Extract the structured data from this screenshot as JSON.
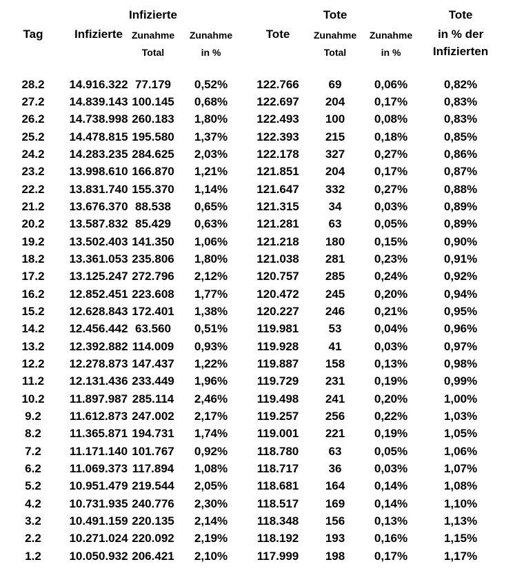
{
  "page": {
    "kind": "daily-covid-statistics-table",
    "background_color": "#ffffff",
    "text_color": "#000000"
  },
  "table": {
    "columns": [
      {
        "name": "tag",
        "header": [
          "",
          "Tag",
          ""
        ]
      },
      {
        "name": "infizierte",
        "header": [
          "",
          "Infizierte",
          ""
        ]
      },
      {
        "name": "infizierte-zunahme-total",
        "header": [
          "Infizierte",
          "Zunahme",
          "Total"
        ]
      },
      {
        "name": "infizierte-zunahme-prozent",
        "header": [
          "",
          "Zunahme",
          "in %"
        ]
      },
      {
        "name": "tote",
        "header": [
          "",
          "Tote",
          ""
        ]
      },
      {
        "name": "tote-zunahme-total",
        "header": [
          "Tote",
          "Zunahme",
          "Total"
        ]
      },
      {
        "name": "tote-zunahme-prozent",
        "header": [
          "",
          "Zunahme",
          "in %"
        ]
      },
      {
        "name": "tote-in-prozent-der-infizierten",
        "header": [
          "Tote",
          "in % der",
          "Infizierten"
        ]
      }
    ],
    "rows": [
      [
        "28.2",
        "14.916.322",
        "77.179",
        "0,52%",
        "122.766",
        "69",
        "0,06%",
        "0,82%"
      ],
      [
        "27.2",
        "14.839.143",
        "100.145",
        "0,68%",
        "122.697",
        "204",
        "0,17%",
        "0,83%"
      ],
      [
        "26.2",
        "14.738.998",
        "260.183",
        "1,80%",
        "122.493",
        "100",
        "0,08%",
        "0,83%"
      ],
      [
        "25.2",
        "14.478.815",
        "195.580",
        "1,37%",
        "122.393",
        "215",
        "0,18%",
        "0,85%"
      ],
      [
        "24.2",
        "14.283.235",
        "284.625",
        "2,03%",
        "122.178",
        "327",
        "0,27%",
        "0,86%"
      ],
      [
        "23.2",
        "13.998.610",
        "166.870",
        "1,21%",
        "121.851",
        "204",
        "0,17%",
        "0,87%"
      ],
      [
        "22.2",
        "13.831.740",
        "155.370",
        "1,14%",
        "121.647",
        "332",
        "0,27%",
        "0,88%"
      ],
      [
        "21.2",
        "13.676.370",
        "88.538",
        "0,65%",
        "121.315",
        "34",
        "0,03%",
        "0,89%"
      ],
      [
        "20.2",
        "13.587.832",
        "85.429",
        "0,63%",
        "121.281",
        "63",
        "0,05%",
        "0,89%"
      ],
      [
        "19.2",
        "13.502.403",
        "141.350",
        "1,06%",
        "121.218",
        "180",
        "0,15%",
        "0,90%"
      ],
      [
        "18.2",
        "13.361.053",
        "235.806",
        "1,80%",
        "121.038",
        "281",
        "0,23%",
        "0,91%"
      ],
      [
        "17.2",
        "13.125.247",
        "272.796",
        "2,12%",
        "120.757",
        "285",
        "0,24%",
        "0,92%"
      ],
      [
        "16.2",
        "12.852.451",
        "223.608",
        "1,77%",
        "120.472",
        "245",
        "0,20%",
        "0,94%"
      ],
      [
        "15.2",
        "12.628.843",
        "172.401",
        "1,38%",
        "120.227",
        "246",
        "0,21%",
        "0,95%"
      ],
      [
        "14.2",
        "12.456.442",
        "63.560",
        "0,51%",
        "119.981",
        "53",
        "0,04%",
        "0,96%"
      ],
      [
        "13.2",
        "12.392.882",
        "114.009",
        "0,93%",
        "119.928",
        "41",
        "0,03%",
        "0,97%"
      ],
      [
        "12.2",
        "12.278.873",
        "147.437",
        "1,22%",
        "119.887",
        "158",
        "0,13%",
        "0,98%"
      ],
      [
        "11.2",
        "12.131.436",
        "233.449",
        "1,96%",
        "119.729",
        "231",
        "0,19%",
        "0,99%"
      ],
      [
        "10.2",
        "11.897.987",
        "285.114",
        "2,46%",
        "119.498",
        "241",
        "0,20%",
        "1,00%"
      ],
      [
        "9.2",
        "11.612.873",
        "247.002",
        "2,17%",
        "119.257",
        "256",
        "0,22%",
        "1,03%"
      ],
      [
        "8.2",
        "11.365.871",
        "194.731",
        "1,74%",
        "119.001",
        "221",
        "0,19%",
        "1,05%"
      ],
      [
        "7.2",
        "11.171.140",
        "101.767",
        "0,92%",
        "118.780",
        "63",
        "0,05%",
        "1,06%"
      ],
      [
        "6.2",
        "11.069.373",
        "117.894",
        "1,08%",
        "118.717",
        "36",
        "0,03%",
        "1,07%"
      ],
      [
        "5.2",
        "10.951.479",
        "219.544",
        "2,05%",
        "118.681",
        "164",
        "0,14%",
        "1,08%"
      ],
      [
        "4.2",
        "10.731.935",
        "240.776",
        "2,30%",
        "118.517",
        "169",
        "0,14%",
        "1,10%"
      ],
      [
        "3.2",
        "10.491.159",
        "220.135",
        "2,14%",
        "118.348",
        "156",
        "0,13%",
        "1,13%"
      ],
      [
        "2.2",
        "10.271.024",
        "220.092",
        "2,19%",
        "118.192",
        "193",
        "0,16%",
        "1,15%"
      ],
      [
        "1.2",
        "10.050.932",
        "206.421",
        "2,10%",
        "117.999",
        "198",
        "0,17%",
        "1,17%"
      ]
    ]
  }
}
